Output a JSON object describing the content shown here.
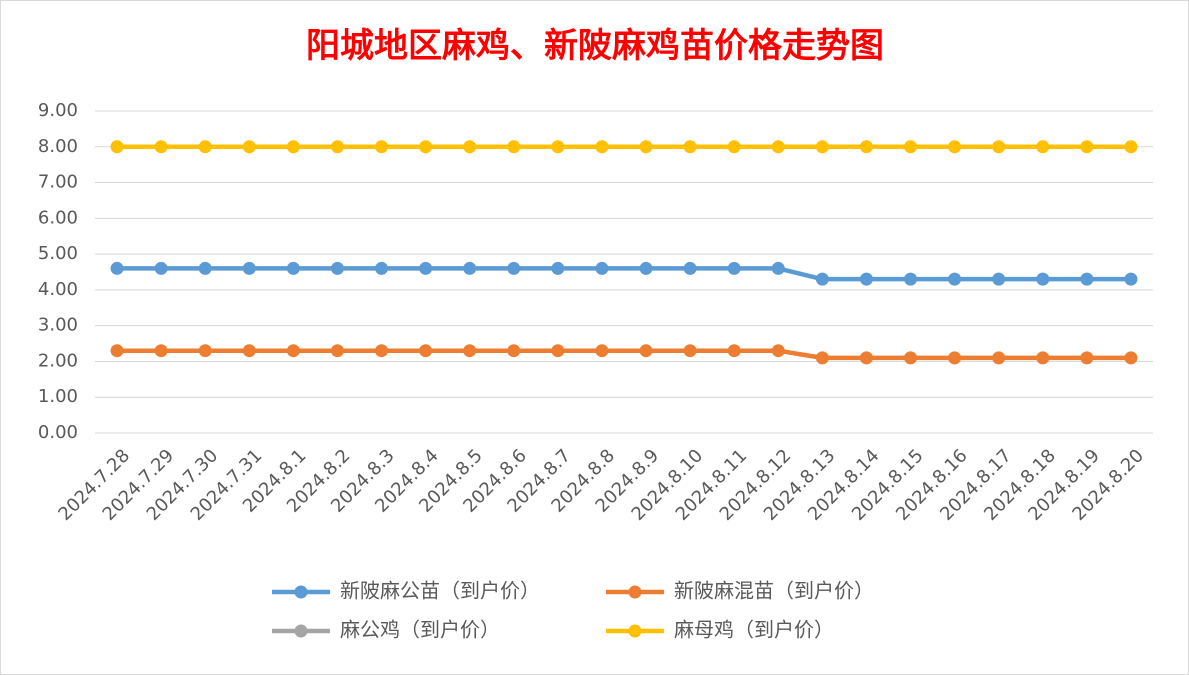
{
  "chart_data": {
    "type": "line",
    "title": "阳城地区麻鸡、新陂麻鸡苗价格走势图",
    "categories": [
      "2024.7.28",
      "2024.7.29",
      "2024.7.30",
      "2024.7.31",
      "2024.8.1",
      "2024.8.2",
      "2024.8.3",
      "2024.8.4",
      "2024.8.5",
      "2024.8.6",
      "2024.8.7",
      "2024.8.8",
      "2024.8.9",
      "2024.8.10",
      "2024.8.11",
      "2024.8.12",
      "2024.8.13",
      "2024.8.14",
      "2024.8.15",
      "2024.8.16",
      "2024.8.17",
      "2024.8.18",
      "2024.8.19",
      "2024.8.20"
    ],
    "series": [
      {
        "name": "新陂麻公苗（到户价）",
        "color": "#5b9bd5",
        "values": [
          4.6,
          4.6,
          4.6,
          4.6,
          4.6,
          4.6,
          4.6,
          4.6,
          4.6,
          4.6,
          4.6,
          4.6,
          4.6,
          4.6,
          4.6,
          4.6,
          4.3,
          4.3,
          4.3,
          4.3,
          4.3,
          4.3,
          4.3,
          4.3
        ]
      },
      {
        "name": "新陂麻混苗（到户价）",
        "color": "#ed7d31",
        "values": [
          2.3,
          2.3,
          2.3,
          2.3,
          2.3,
          2.3,
          2.3,
          2.3,
          2.3,
          2.3,
          2.3,
          2.3,
          2.3,
          2.3,
          2.3,
          2.3,
          2.1,
          2.1,
          2.1,
          2.1,
          2.1,
          2.1,
          2.1,
          2.1
        ]
      },
      {
        "name": "麻公鸡（到户价）",
        "color": "#a5a5a5",
        "values": [
          null,
          null,
          null,
          null,
          null,
          null,
          null,
          null,
          null,
          null,
          null,
          null,
          null,
          null,
          null,
          null,
          null,
          null,
          null,
          null,
          null,
          null,
          null,
          null
        ]
      },
      {
        "name": "麻母鸡（到户价）",
        "color": "#ffc000",
        "values": [
          8,
          8,
          8,
          8,
          8,
          8,
          8,
          8,
          8,
          8,
          8,
          8,
          8,
          8,
          8,
          8,
          8,
          8,
          8,
          8,
          8,
          8,
          8,
          8
        ]
      }
    ],
    "ylim": [
      0,
      9
    ],
    "yticks": [
      {
        "value": 0,
        "label": "0.00"
      },
      {
        "value": 1,
        "label": "1.00"
      },
      {
        "value": 2,
        "label": "2.00"
      },
      {
        "value": 3,
        "label": "3.00"
      },
      {
        "value": 4,
        "label": "4.00"
      },
      {
        "value": 5,
        "label": "5.00"
      },
      {
        "value": 6,
        "label": "6.00"
      },
      {
        "value": 7,
        "label": "7.00"
      },
      {
        "value": 8,
        "label": "8.00"
      },
      {
        "value": 9,
        "label": "9.00"
      }
    ],
    "grid": true,
    "legend": "bottom"
  }
}
